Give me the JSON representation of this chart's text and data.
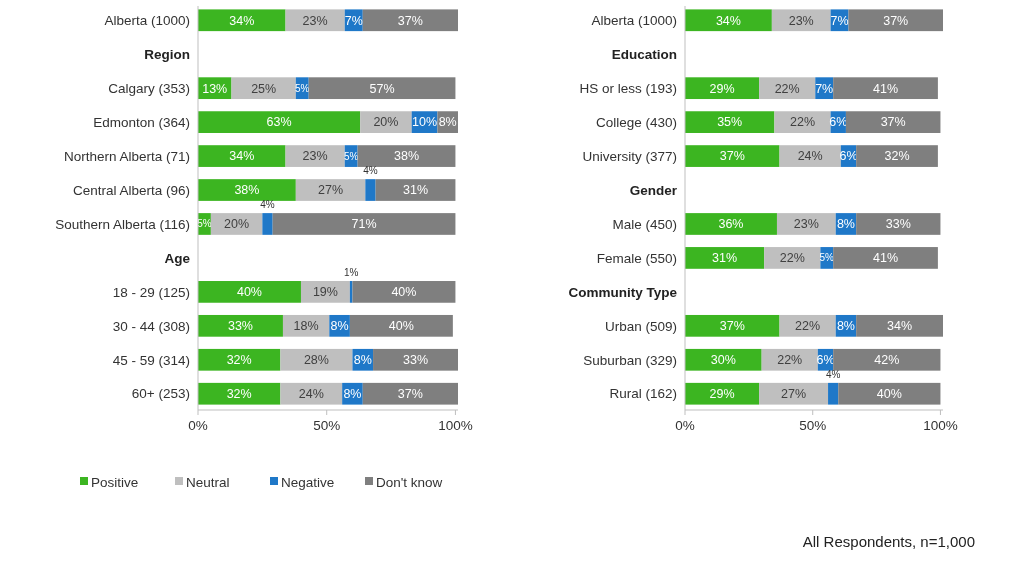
{
  "chart_data": [
    {
      "type": "bar",
      "orientation": "horizontal",
      "stacked": true,
      "categories": [
        "Alberta (1000)",
        "Region",
        "Calgary (353)",
        "Edmonton (364)",
        "Northern Alberta (71)",
        "Central Alberta (96)",
        "Southern Alberta (116)",
        "Age",
        "18 - 29 (125)",
        "30 - 44 (308)",
        "45 - 59 (314)",
        "60+ (253)"
      ],
      "series": [
        {
          "name": "Positive",
          "color": "#3cb521",
          "values": [
            34,
            null,
            13,
            63,
            34,
            38,
            5,
            null,
            40,
            33,
            32,
            32
          ],
          "value_labels": [
            "34%",
            null,
            "13%",
            "63%",
            "34%",
            "38%",
            "5%",
            null,
            "40%",
            "33%",
            "32%",
            "32%"
          ]
        },
        {
          "name": "Neutral",
          "color": "#bfbfbf",
          "values": [
            23,
            null,
            25,
            20,
            23,
            27,
            20,
            null,
            19,
            18,
            28,
            24
          ],
          "value_labels": [
            "23%",
            null,
            "25%",
            "20%",
            "23%",
            "27%",
            "20%",
            null,
            "19%",
            "18%",
            "28%",
            "24%"
          ]
        },
        {
          "name": "Negative",
          "color": "#1f78c8",
          "values": [
            7,
            null,
            5,
            10,
            5,
            4,
            4,
            null,
            1,
            8,
            8,
            8
          ],
          "value_labels": [
            "7%",
            null,
            "5%",
            "10%",
            "5%",
            "4%",
            "4%",
            null,
            "1%",
            "8%",
            "8%",
            "8%"
          ]
        },
        {
          "name": "Don't know",
          "color": "#7f7f7f",
          "values": [
            37,
            null,
            57,
            8,
            38,
            31,
            71,
            null,
            40,
            40,
            33,
            37
          ],
          "value_labels": [
            "37%",
            null,
            "57%",
            "8%",
            "38%",
            "31%",
            "71%",
            null,
            "40%",
            "40%",
            "33%",
            "37%"
          ]
        }
      ],
      "xlim": [
        0,
        101
      ],
      "xticks": [
        {
          "value": 0,
          "label": "0%"
        },
        {
          "value": 50,
          "label": "50%"
        },
        {
          "value": 100,
          "label": "100%"
        }
      ],
      "legend": "bottom"
    },
    {
      "type": "bar",
      "orientation": "horizontal",
      "stacked": true,
      "categories": [
        "Alberta (1000)",
        "Education",
        "HS or less (193)",
        "College (430)",
        "University (377)",
        "Gender",
        "Male (450)",
        "Female (550)",
        "Community Type",
        "Urban (509)",
        "Suburban (329)",
        "Rural (162)"
      ],
      "series": [
        {
          "color": "#3cb521",
          "values": [
            34,
            null,
            29,
            35,
            37,
            null,
            36,
            31,
            null,
            37,
            30,
            29
          ],
          "value_labels": [
            "34%",
            null,
            "29%",
            "35%",
            "37%",
            null,
            "36%",
            "31%",
            null,
            "37%",
            "30%",
            "29%"
          ]
        },
        {
          "color": "#bfbfbf",
          "values": [
            23,
            null,
            22,
            22,
            24,
            null,
            23,
            22,
            null,
            22,
            22,
            27
          ],
          "value_labels": [
            "23%",
            null,
            "22%",
            "22%",
            "24%",
            null,
            "23%",
            "22%",
            null,
            "22%",
            "22%",
            "27%"
          ]
        },
        {
          "color": "#1f78c8",
          "values": [
            7,
            null,
            7,
            6,
            6,
            null,
            8,
            5,
            null,
            8,
            6,
            4
          ],
          "value_labels": [
            "7%",
            null,
            "7%",
            "6%",
            "6%",
            null,
            "8%",
            "5%",
            null,
            "8%",
            "6%",
            "4%"
          ]
        },
        {
          "color": "#7f7f7f",
          "values": [
            37,
            null,
            41,
            37,
            32,
            null,
            33,
            41,
            null,
            34,
            42,
            40
          ],
          "value_labels": [
            "37%",
            null,
            "41%",
            "37%",
            "32%",
            null,
            "33%",
            "41%",
            null,
            "34%",
            "42%",
            "40%"
          ]
        }
      ],
      "xlim": [
        0,
        101
      ],
      "xticks": [
        {
          "value": 0,
          "label": "0%"
        },
        {
          "value": 50,
          "label": "50%"
        },
        {
          "value": 100,
          "label": "100%"
        }
      ],
      "annotations": [
        "All Respondents, n=1,000"
      ]
    }
  ]
}
